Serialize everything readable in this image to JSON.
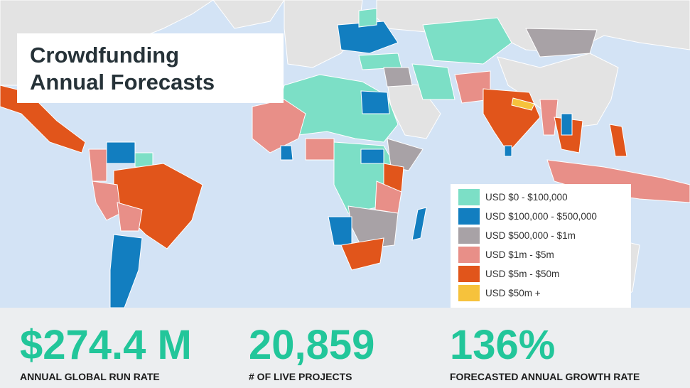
{
  "title": {
    "line1": "Crowdfunding",
    "line2": "Annual Forecasts"
  },
  "legend": {
    "items": [
      {
        "label": "USD $0 - $100,000",
        "color": "#7cdfc6"
      },
      {
        "label": "USD $100,000 - $500,000",
        "color": "#127ec0"
      },
      {
        "label": "USD $500,000 - $1m",
        "color": "#a8a2a6"
      },
      {
        "label": "USD $1m - $5m",
        "color": "#e88f88"
      },
      {
        "label": "USD $5m - $50m",
        "color": "#e1551b"
      },
      {
        "label": "USD $50m +",
        "color": "#f6c23c"
      }
    ]
  },
  "stats": [
    {
      "value": "$274.4 M",
      "label": "ANNUAL GLOBAL RUN RATE"
    },
    {
      "value": "20,859",
      "label": "# OF LIVE PROJECTS"
    },
    {
      "value": "136%",
      "label": "FORECASTED ANNUAL GROWTH RATE"
    }
  ],
  "colors": {
    "ocean": "#d3e3f5",
    "no_data_land": "#e3e3e3",
    "stat_value": "#22c69a",
    "stat_label": "#1c1c1c",
    "title_text": "#263238"
  }
}
